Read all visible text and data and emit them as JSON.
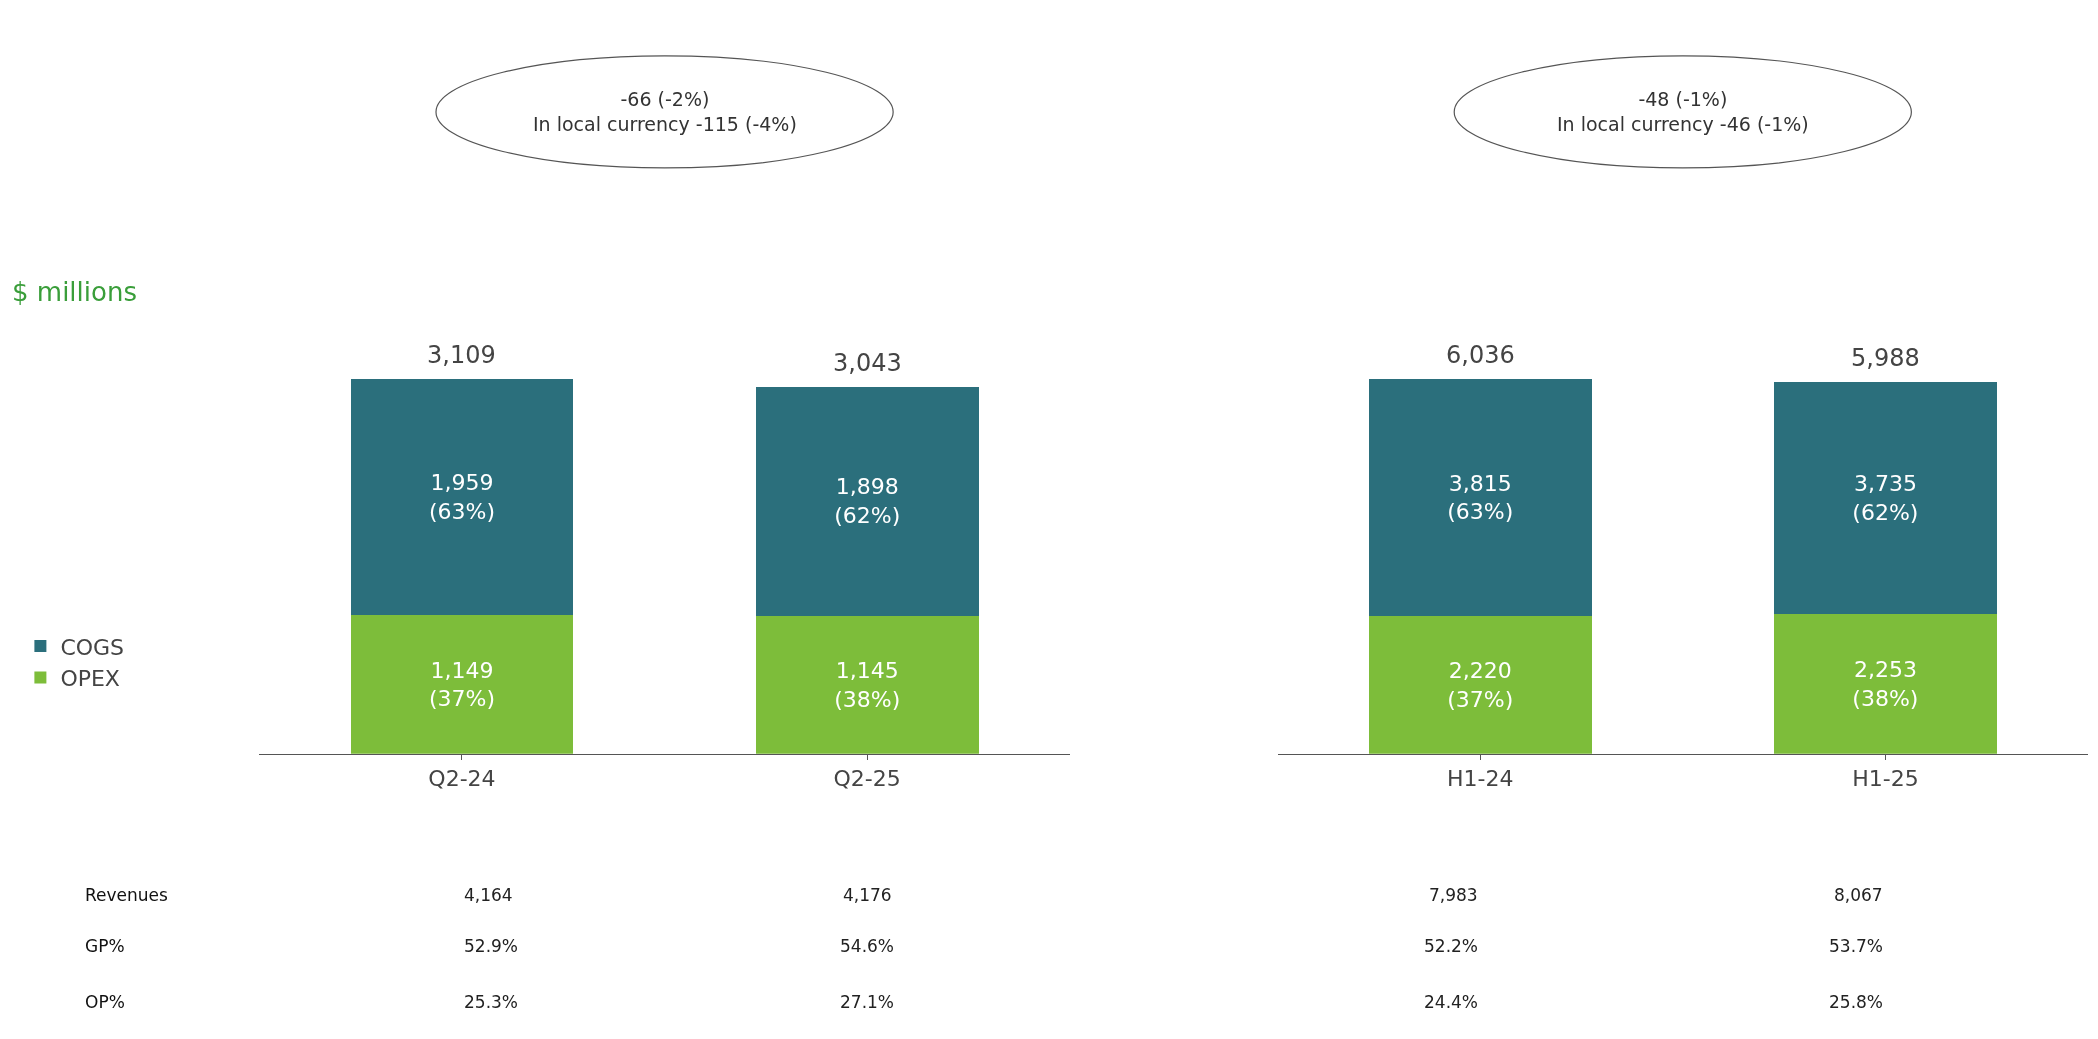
{
  "chart_data": [
    {
      "type": "bar",
      "stacked": true,
      "ylabel": "$ millions",
      "legend": "left",
      "categories": [
        "Q2-24",
        "Q2-25"
      ],
      "series": [
        {
          "name": "OPEX",
          "color": "#7dbd3a",
          "values": [
            1149,
            1145
          ],
          "value_labels": [
            "1,149\n(37%)",
            "1,145\n(38%)"
          ]
        },
        {
          "name": "COGS",
          "color": "#2b6f7c",
          "values": [
            1959,
            1898
          ],
          "value_labels": [
            "1,959\n(63%)",
            "1,898\n(62%)"
          ]
        }
      ],
      "totals": [
        "3,109",
        "3,043"
      ],
      "annotations": [
        "-66 (-2%)\nIn local currency -115 (-4%)",
        "Revenues",
        "4,164",
        "4,176",
        "GP%",
        "52.9%",
        "54.6%",
        "OP%",
        "25.3%",
        "27.1%"
      ]
    },
    {
      "type": "bar",
      "stacked": true,
      "categories": [
        "H1-24",
        "H1-25"
      ],
      "series": [
        {
          "color": "#7dbd3a",
          "values": [
            2220,
            2253
          ],
          "value_labels": [
            "2,220\n(37%)",
            "2,253\n(38%)"
          ]
        },
        {
          "color": "#2b6f7c",
          "values": [
            3815,
            3735
          ],
          "value_labels": [
            "3,815\n(63%)",
            "3,735\n(62%)"
          ]
        }
      ],
      "totals": [
        "6,036",
        "5,988"
      ],
      "annotations": [
        "-48 (-1%)\nIn local currency -46 (-1%)",
        "7,983",
        "8,067",
        "52.2%",
        "53.7%",
        "24.4%",
        "25.8%"
      ]
    }
  ]
}
